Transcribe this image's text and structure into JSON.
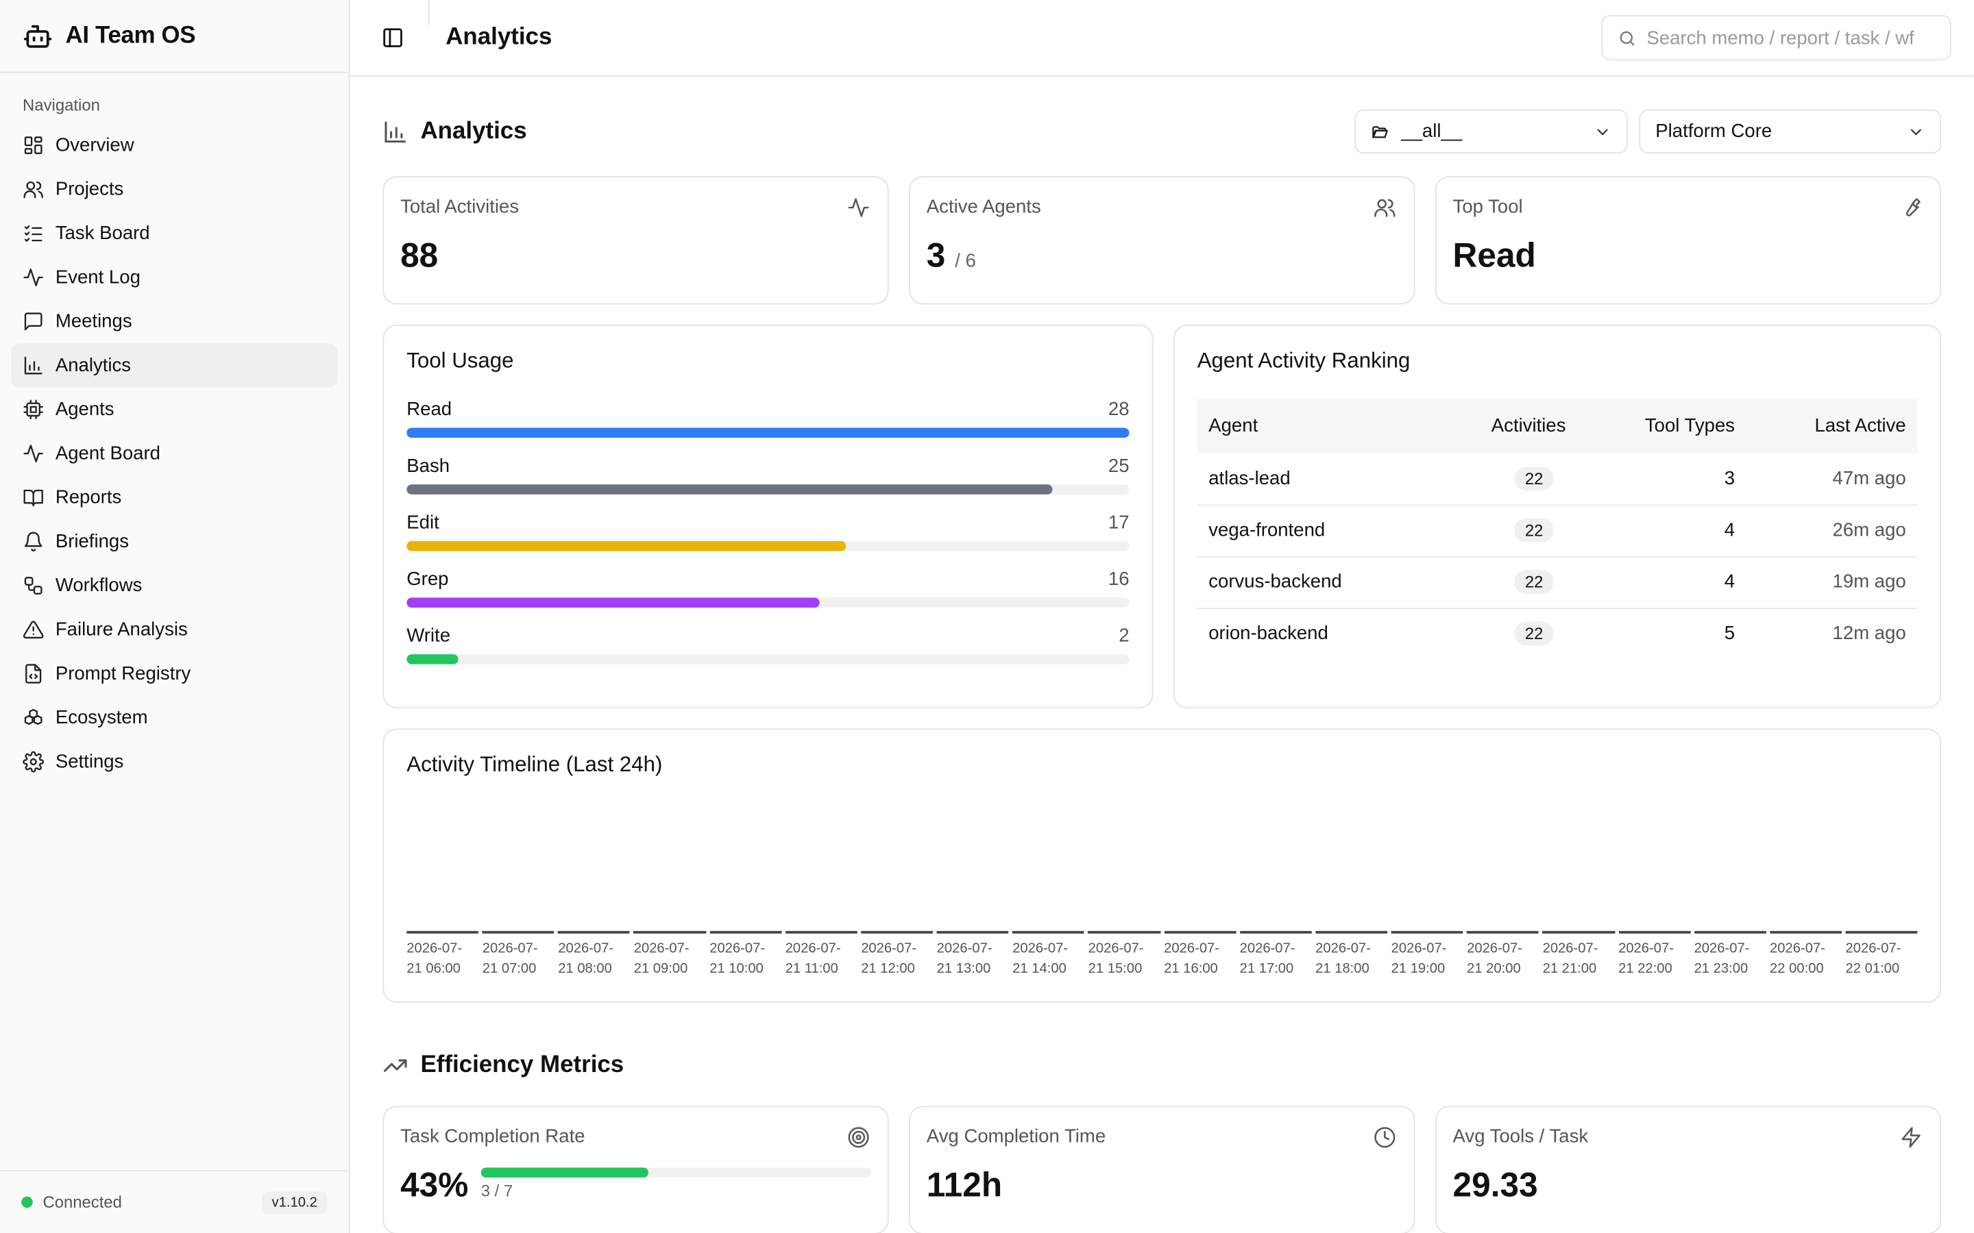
{
  "app": {
    "name": "AI Team OS",
    "version": "v1.10.2",
    "status": "Connected"
  },
  "sidebar": {
    "section_label": "Navigation",
    "items": [
      {
        "label": "Overview",
        "icon": "layout-grid-icon"
      },
      {
        "label": "Projects",
        "icon": "users-icon"
      },
      {
        "label": "Task Board",
        "icon": "list-checks-icon"
      },
      {
        "label": "Event Log",
        "icon": "activity-icon"
      },
      {
        "label": "Meetings",
        "icon": "message-square-icon"
      },
      {
        "label": "Analytics",
        "icon": "bar-chart-icon",
        "active": true
      },
      {
        "label": "Agents",
        "icon": "cpu-icon"
      },
      {
        "label": "Agent Board",
        "icon": "activity-icon"
      },
      {
        "label": "Reports",
        "icon": "book-open-icon"
      },
      {
        "label": "Briefings",
        "icon": "bell-icon"
      },
      {
        "label": "Workflows",
        "icon": "workflow-icon"
      },
      {
        "label": "Failure Analysis",
        "icon": "alert-triangle-icon"
      },
      {
        "label": "Prompt Registry",
        "icon": "file-code-icon"
      },
      {
        "label": "Ecosystem",
        "icon": "boxes-icon"
      },
      {
        "label": "Settings",
        "icon": "gear-icon"
      }
    ]
  },
  "header": {
    "title": "Analytics",
    "search_placeholder": "Search memo / report / task / wf"
  },
  "analytics": {
    "title": "Analytics",
    "project_select": "__all__",
    "team_select": "Platform Core",
    "stats": {
      "total_activities": {
        "label": "Total Activities",
        "value": "88"
      },
      "active_agents": {
        "label": "Active Agents",
        "value": "3",
        "total": "/ 6"
      },
      "top_tool": {
        "label": "Top Tool",
        "value": "Read"
      }
    },
    "tool_usage": {
      "title": "Tool Usage",
      "max": 28,
      "tools": [
        {
          "name": "Read",
          "count": 28,
          "color": "#2f7cf6"
        },
        {
          "name": "Bash",
          "count": 25,
          "color": "#6b7280"
        },
        {
          "name": "Edit",
          "count": 17,
          "color": "#eab308"
        },
        {
          "name": "Grep",
          "count": 16,
          "color": "#a53ff5"
        },
        {
          "name": "Write",
          "count": 2,
          "color": "#22c55e"
        }
      ]
    },
    "ranking": {
      "title": "Agent Activity Ranking",
      "columns": [
        "Agent",
        "Activities",
        "Tool Types",
        "Last Active"
      ],
      "rows": [
        {
          "agent": "atlas-lead",
          "activities": "22",
          "tool_types": "3",
          "last_active": "47m ago"
        },
        {
          "agent": "vega-frontend",
          "activities": "22",
          "tool_types": "4",
          "last_active": "26m ago"
        },
        {
          "agent": "corvus-backend",
          "activities": "22",
          "tool_types": "4",
          "last_active": "19m ago"
        },
        {
          "agent": "orion-backend",
          "activities": "22",
          "tool_types": "5",
          "last_active": "12m ago"
        }
      ]
    },
    "timeline": {
      "title": "Activity Timeline (Last 24h)",
      "labels": [
        [
          "2026-07-",
          "21 06:00"
        ],
        [
          "2026-07-",
          "21 07:00"
        ],
        [
          "2026-07-",
          "21 08:00"
        ],
        [
          "2026-07-",
          "21 09:00"
        ],
        [
          "2026-07-",
          "21 10:00"
        ],
        [
          "2026-07-",
          "21 11:00"
        ],
        [
          "2026-07-",
          "21 12:00"
        ],
        [
          "2026-07-",
          "21 13:00"
        ],
        [
          "2026-07-",
          "21 14:00"
        ],
        [
          "2026-07-",
          "21 15:00"
        ],
        [
          "2026-07-",
          "21 16:00"
        ],
        [
          "2026-07-",
          "21 17:00"
        ],
        [
          "2026-07-",
          "21 18:00"
        ],
        [
          "2026-07-",
          "21 19:00"
        ],
        [
          "2026-07-",
          "21 20:00"
        ],
        [
          "2026-07-",
          "21 21:00"
        ],
        [
          "2026-07-",
          "21 22:00"
        ],
        [
          "2026-07-",
          "21 23:00"
        ],
        [
          "2026-07-",
          "22 00:00"
        ],
        [
          "2026-07-",
          "22 01:00"
        ]
      ]
    }
  },
  "efficiency": {
    "title": "Efficiency Metrics",
    "completion_rate": {
      "label": "Task Completion Rate",
      "value": "43%",
      "fraction": 0.43,
      "sub": "3 / 7"
    },
    "avg_time": {
      "label": "Avg Completion Time",
      "value": "112h"
    },
    "avg_tools": {
      "label": "Avg Tools / Task",
      "value": "29.33"
    }
  }
}
